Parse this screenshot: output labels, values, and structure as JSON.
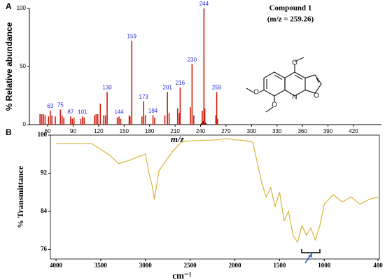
{
  "chart_data": [
    {
      "type": "bar",
      "panel": "A",
      "y_label": "% Relative abundance",
      "x_label": "m/z",
      "annotations": [
        "Compound 1",
        "(m/z = 259.26)"
      ],
      "structure_atoms": [
        "O",
        "O",
        "O",
        "N",
        "O"
      ],
      "xlim": [
        38.5,
        453
      ],
      "xticks": [
        60,
        90,
        120,
        150,
        180,
        210,
        240,
        270,
        300,
        330,
        360,
        390,
        420
      ],
      "ylim": [
        0,
        100
      ],
      "yticks": [
        0,
        50,
        100
      ],
      "label_color": "#2a2ad8",
      "series": [
        {
          "color": "#cc1f10",
          "show_labels": true,
          "x": [
            63,
            75,
            87,
            101,
            130,
            144,
            159,
            173,
            184,
            201,
            216,
            230,
            244,
            259
          ],
          "values": [
            12,
            13,
            7,
            7,
            28,
            7,
            72,
            20,
            8,
            28,
            32,
            52,
            100,
            28
          ]
        },
        {
          "color": "#cc1f10",
          "show_labels": false,
          "x": [
            51,
            53,
            55,
            57,
            61,
            65,
            69,
            77,
            79,
            89,
            91,
            99,
            103,
            115,
            117,
            119,
            122,
            126,
            128,
            142,
            146,
            156,
            157,
            171,
            175,
            186,
            198,
            203,
            213,
            215,
            228,
            232,
            242,
            245,
            258,
            260
          ],
          "values": [
            9,
            9,
            9,
            8,
            7,
            8,
            7,
            8,
            6,
            5,
            6,
            5,
            6,
            8,
            9,
            9,
            18,
            8,
            8,
            6,
            5,
            8,
            7,
            7,
            8,
            6,
            8,
            10,
            14,
            10,
            15,
            8,
            12,
            14,
            8,
            5
          ]
        }
      ]
    },
    {
      "type": "line",
      "panel": "B",
      "y_label": "% Transmittance",
      "x_label": "cm⁻¹",
      "xlim": [
        4063,
        384
      ],
      "xticks": [
        4000,
        3500,
        3000,
        2500,
        2000,
        1500,
        1000,
        400
      ],
      "ylim": [
        74,
        100
      ],
      "yticks": [
        76,
        84,
        92,
        100
      ],
      "series": [
        {
          "color": "#d8b43a",
          "x": [
            4000,
            3600,
            3400,
            3300,
            3200,
            3000,
            2960,
            2920,
            2900,
            2850,
            2700,
            2600,
            2500,
            2200,
            2100,
            2000,
            1900,
            1800,
            1700,
            1650,
            1600,
            1550,
            1500,
            1450,
            1400,
            1350,
            1300,
            1250,
            1200,
            1150,
            1100,
            1050,
            1000,
            900,
            800,
            700,
            600,
            500,
            400
          ],
          "values": [
            98.2,
            98.2,
            95.8,
            94,
            94.6,
            96,
            92,
            89,
            86.5,
            92.5,
            96.5,
            98.5,
            98.8,
            99,
            99.3,
            99,
            98.9,
            98.5,
            90,
            87,
            89,
            85,
            88,
            82,
            84,
            79,
            77.5,
            81,
            79,
            80.5,
            78,
            81,
            85.5,
            87.5,
            86,
            87,
            85.5,
            86.5,
            87
          ]
        }
      ]
    }
  ]
}
